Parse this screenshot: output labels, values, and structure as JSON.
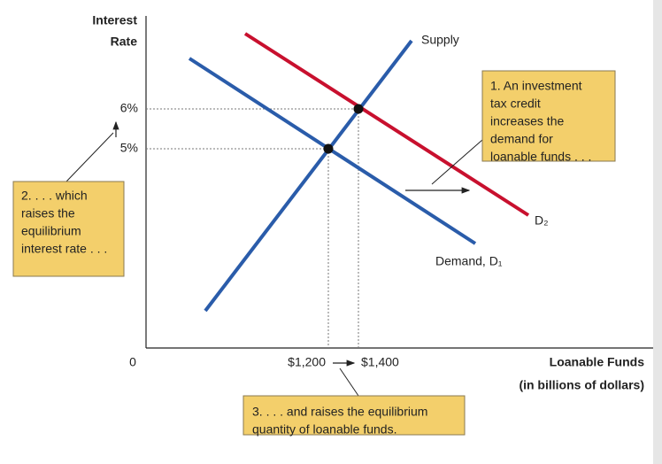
{
  "axes": {
    "y_title": [
      "Interest",
      "Rate"
    ],
    "origin": "0",
    "y_ticks": [
      "6%",
      "5%"
    ],
    "x_ticks": [
      "$1,200",
      "$1,400"
    ],
    "x_title": [
      "Loanable Funds",
      "(in billions of dollars)"
    ]
  },
  "curves": {
    "supply": "Supply",
    "demand_1": "Demand, D₁",
    "demand_2": "D₂"
  },
  "notes": [
    {
      "lines": [
        "1. An investment",
        "tax credit",
        "increases the",
        "demand for",
        "loanable funds . . ."
      ]
    },
    {
      "lines": [
        "2. . . . which",
        "raises the",
        "equilibrium",
        "interest rate . . ."
      ]
    },
    {
      "lines": [
        "3. . . . and raises the equilibrium",
        "quantity of loanable funds."
      ]
    }
  ]
}
